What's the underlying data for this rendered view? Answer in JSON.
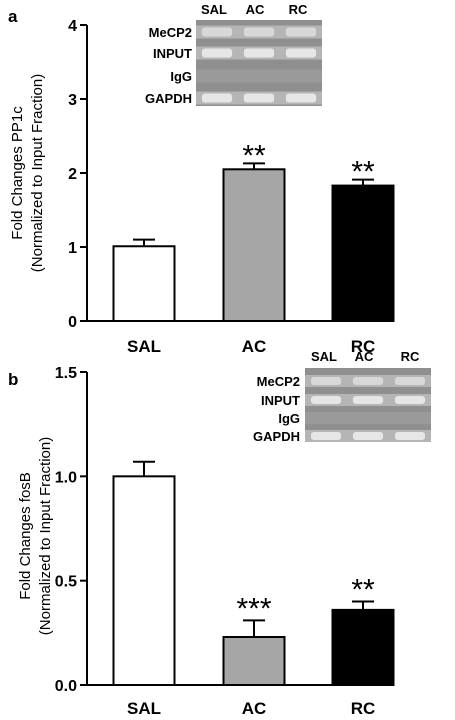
{
  "chart_data": [
    {
      "panel_label": "a",
      "type": "bar",
      "categories": [
        "SAL",
        "AC",
        "RC"
      ],
      "values": [
        1.01,
        2.05,
        1.83
      ],
      "errors": [
        0.09,
        0.08,
        0.08
      ],
      "significance": [
        "",
        "**",
        "**"
      ],
      "bar_colors": [
        "#ffffff",
        "#a6a6a6",
        "#000000"
      ],
      "ylabel_line1": "Fold Changes PP1c",
      "ylabel_line2": "(Normalized to Input Fraction)",
      "ylim": [
        0,
        4
      ],
      "yticks": [
        "0",
        "1",
        "2",
        "3",
        "4"
      ],
      "inset": {
        "lane_labels": [
          "SAL",
          "AC",
          "RC"
        ],
        "row_labels": [
          "MeCP2",
          "INPUT",
          "IgG",
          "GAPDH"
        ]
      }
    },
    {
      "panel_label": "b",
      "type": "bar",
      "categories": [
        "SAL",
        "AC",
        "RC"
      ],
      "values": [
        1.0,
        0.23,
        0.36
      ],
      "errors": [
        0.07,
        0.08,
        0.04
      ],
      "significance": [
        "",
        "***",
        "**"
      ],
      "bar_colors": [
        "#ffffff",
        "#a6a6a6",
        "#000000"
      ],
      "ylabel_line1": "Fold Changes fosB",
      "ylabel_line2": "(Normalized to Input Fraction)",
      "ylim": [
        0,
        1.5
      ],
      "yticks": [
        "0.0",
        "0.5",
        "1.0",
        "1.5"
      ],
      "inset": {
        "lane_labels": [
          "SAL",
          "AC",
          "RC"
        ],
        "row_labels": [
          "MeCP2",
          "INPUT",
          "IgG",
          "GAPDH"
        ]
      }
    }
  ]
}
